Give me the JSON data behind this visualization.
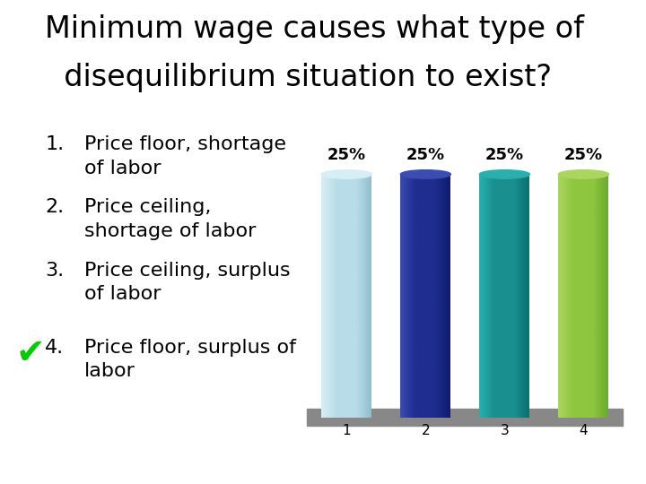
{
  "title_line1": "Minimum wage causes what type of",
  "title_line2": "  disequilibrium situation to exist?",
  "items_numbers": [
    "1.",
    "2.",
    "3.",
    "4."
  ],
  "items_text": [
    "Price floor, shortage\nof labor",
    "Price ceiling,\nshortage of labor",
    "Price ceiling, surplus\nof labor",
    "Price floor, surplus of\nlabor"
  ],
  "bar_values": [
    25,
    25,
    25,
    25
  ],
  "bar_labels": [
    "25%",
    "25%",
    "25%",
    "25%"
  ],
  "bar_colors_main": [
    "#b8dde8",
    "#1e2d8f",
    "#1a8f8f",
    "#8dc63f"
  ],
  "bar_colors_light": [
    "#d8eef5",
    "#3a4db0",
    "#2aafaf",
    "#aad65f"
  ],
  "bar_colors_dark": [
    "#90bfcc",
    "#0f1a6f",
    "#0a6f6f",
    "#6aaa2f"
  ],
  "bar_xticks": [
    "1",
    "2",
    "3",
    "4"
  ],
  "platform_color": "#888888",
  "background_color": "#ffffff",
  "title_fontsize": 24,
  "item_fontsize": 16,
  "bar_label_fontsize": 13,
  "tick_fontsize": 11
}
